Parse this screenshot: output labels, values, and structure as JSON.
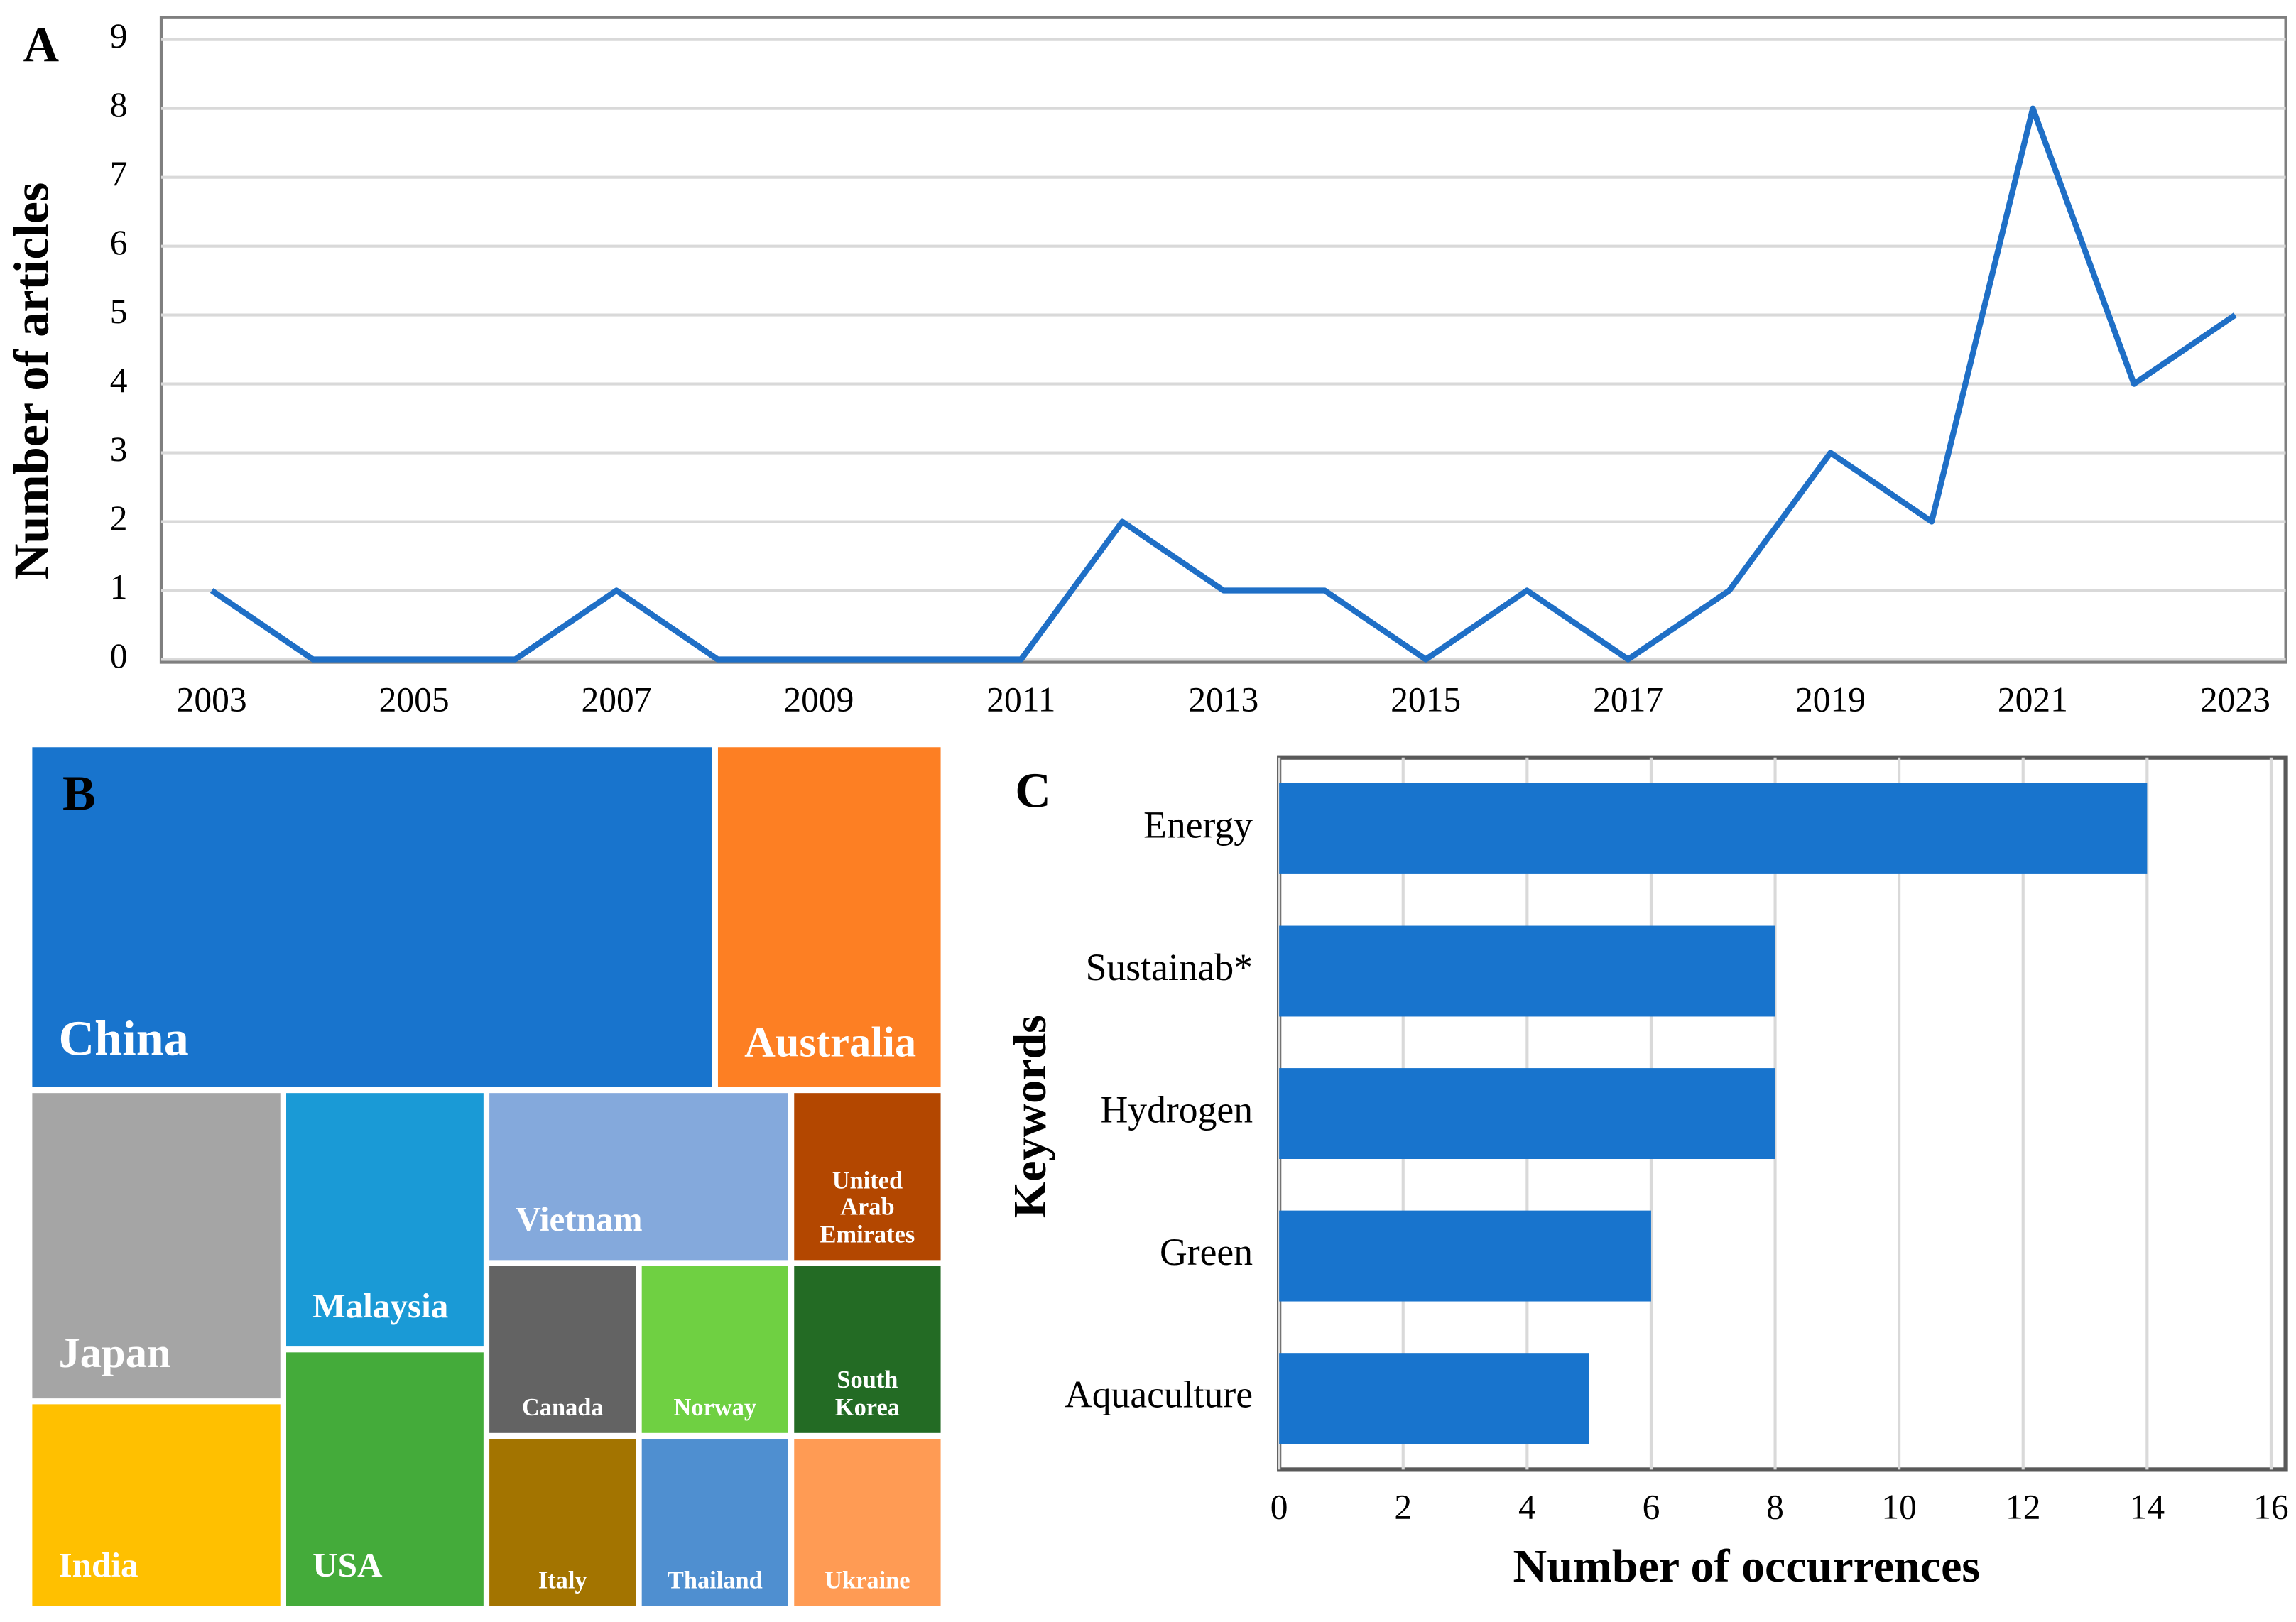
{
  "chart_data": [
    {
      "type": "line",
      "label": "A",
      "y_label": "Number of articles",
      "x": [
        2003,
        2004,
        2005,
        2006,
        2007,
        2008,
        2009,
        2010,
        2011,
        2012,
        2013,
        2014,
        2015,
        2016,
        2017,
        2018,
        2019,
        2020,
        2021,
        2022,
        2023
      ],
      "series": [
        {
          "color": "#1f6fc6",
          "values": [
            1,
            0,
            0,
            0,
            1,
            0,
            0,
            0,
            0,
            2,
            1,
            1,
            0,
            1,
            0,
            1,
            3,
            2,
            8,
            4,
            5
          ]
        }
      ],
      "xlim": [
        2002.5,
        2023.5
      ],
      "xticks": [
        2003,
        2005,
        2007,
        2009,
        2011,
        2013,
        2015,
        2017,
        2019,
        2021,
        2023
      ],
      "ylim": [
        0,
        9
      ],
      "yticks": [
        0,
        1,
        2,
        3,
        4,
        5,
        6,
        7,
        8,
        9
      ],
      "grid": true
    },
    {
      "type": "treemap",
      "label": "B",
      "categories": [
        "China",
        "Australia",
        "Japan",
        "India",
        "Malaysia",
        "USA",
        "Vietnam",
        "United Arab Emirates",
        "Canada",
        "Norway",
        "South Korea",
        "Italy",
        "Thailand",
        "Ukraine"
      ],
      "values": [
        9,
        3,
        3,
        2,
        2,
        2,
        2,
        1,
        1,
        1,
        1,
        1,
        1,
        1
      ],
      "colors": [
        "#1874cd",
        "#fd7f23",
        "#a5a5a5",
        "#ffc000",
        "#1a9ad6",
        "#44ab3a",
        "#84a9dc",
        "#b34700",
        "#636363",
        "#6fd042",
        "#236b24",
        "#a37400",
        "#4f8fd0",
        "#ff9b54"
      ]
    },
    {
      "type": "hbar",
      "label": "C",
      "x_label": "Number of occurrences",
      "y_label": "Keywords",
      "categories": [
        "Energy",
        "Sustainab*",
        "Hydrogen",
        "Green",
        "Aquaculture"
      ],
      "values": [
        14,
        8,
        8,
        6,
        5
      ],
      "color": "#1874cd",
      "xlim": [
        0,
        16
      ],
      "xticks": [
        0,
        2,
        4,
        6,
        8,
        10,
        12,
        14,
        16
      ],
      "grid": true
    }
  ]
}
